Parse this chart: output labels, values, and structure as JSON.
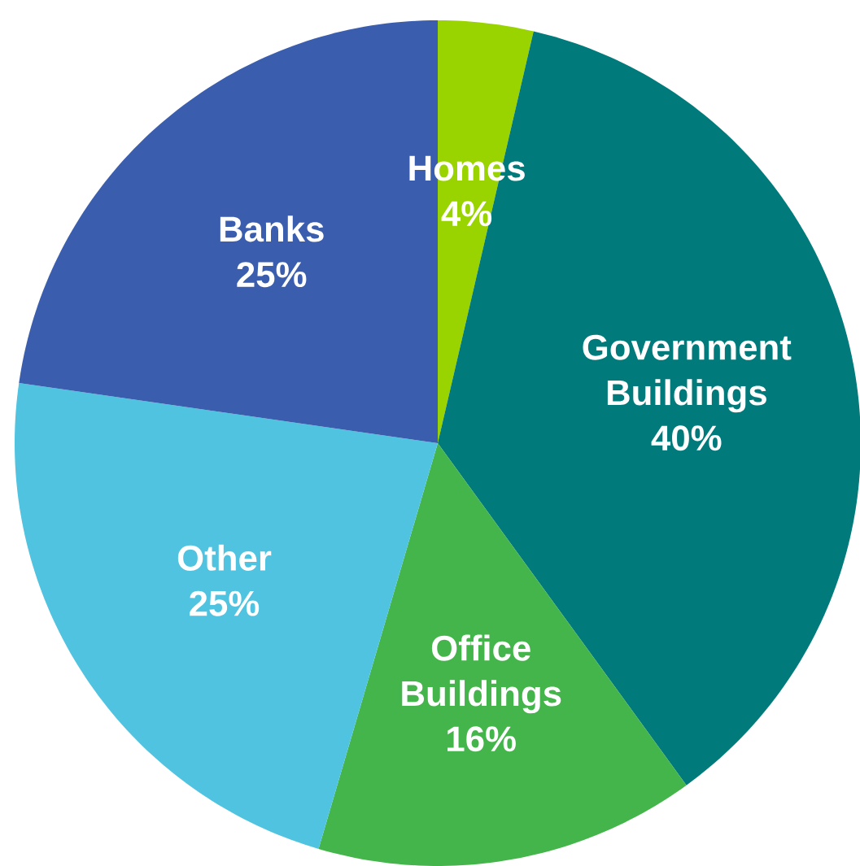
{
  "chart_data": {
    "type": "pie",
    "categories": [
      "Homes",
      "Government Buildings",
      "Office Buildings",
      "Other",
      "Banks"
    ],
    "values": [
      4,
      40,
      16,
      25,
      25
    ],
    "value_labels": [
      "4%",
      "40%",
      "16%",
      "25%",
      "25%"
    ],
    "colors": [
      "#99d400",
      "#007a7a",
      "#43b54a",
      "#4fc3df",
      "#3a5dae"
    ]
  }
}
